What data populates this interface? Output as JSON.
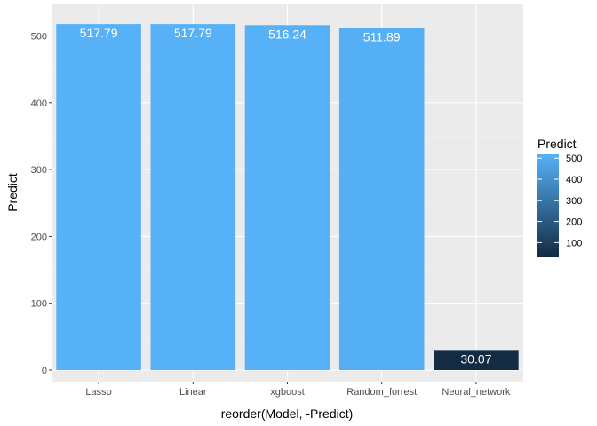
{
  "chart_data": {
    "type": "bar",
    "title": "",
    "xlabel": "reorder(Model, -Predict)",
    "ylabel": "Predict",
    "categories": [
      "Lasso",
      "Linear",
      "xgboost",
      "Random_forrest",
      "Neural_network"
    ],
    "values": [
      517.79,
      517.79,
      516.24,
      511.89,
      30.07
    ],
    "data_labels": [
      "517.79",
      "517.79",
      "516.24",
      "511.89",
      "30.07"
    ],
    "ylim": [
      0,
      540
    ],
    "yticks": [
      0,
      100,
      200,
      300,
      400,
      500
    ],
    "grid": true,
    "legend": {
      "title": "Predict",
      "placement": "right",
      "type": "colorbar",
      "ticks": [
        100,
        200,
        300,
        400,
        500
      ],
      "low_color": "#132B43",
      "high_color": "#56B1F7",
      "range": [
        30.07,
        517.79
      ]
    },
    "colors": {
      "panel_bg": "#EBEBEB",
      "grid_major": "#FFFFFF",
      "grid_minor": "#F2F2F2"
    }
  }
}
